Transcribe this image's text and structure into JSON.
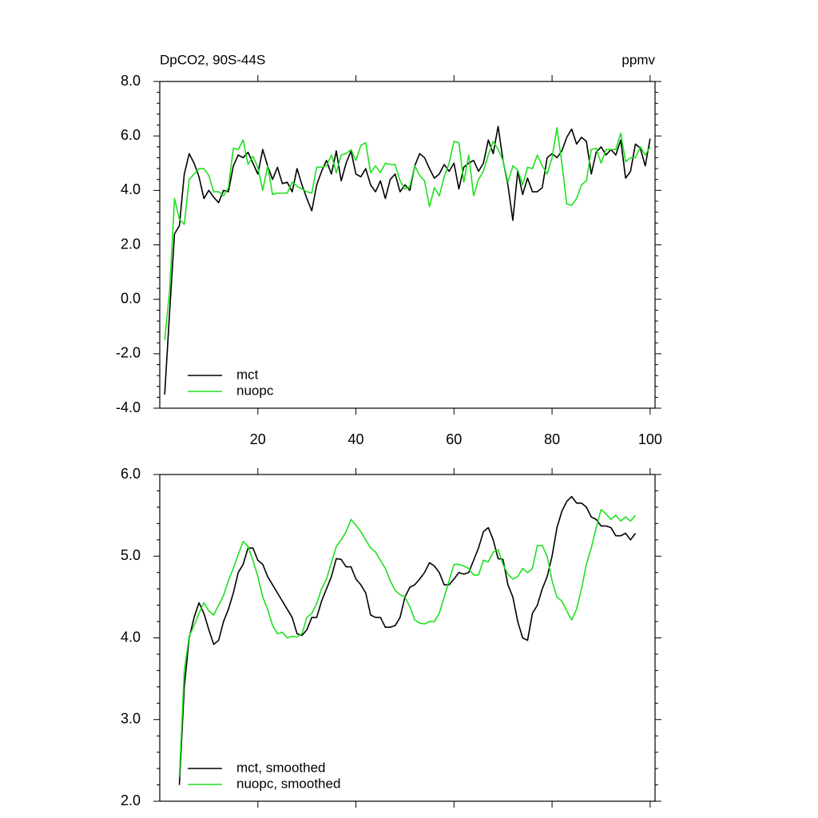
{
  "chart_data": [
    {
      "type": "line",
      "title_left": "DpCO2, 90S-44S",
      "title_right": "ppmv",
      "x": [
        1,
        2,
        3,
        4,
        5,
        6,
        7,
        8,
        9,
        10,
        11,
        12,
        13,
        14,
        15,
        16,
        17,
        18,
        19,
        20,
        21,
        22,
        23,
        24,
        25,
        26,
        27,
        28,
        29,
        30,
        31,
        32,
        33,
        34,
        35,
        36,
        37,
        38,
        39,
        40,
        41,
        42,
        43,
        44,
        45,
        46,
        47,
        48,
        49,
        50,
        51,
        52,
        53,
        54,
        55,
        56,
        57,
        58,
        59,
        60,
        61,
        62,
        63,
        64,
        65,
        66,
        67,
        68,
        69,
        70,
        71,
        72,
        73,
        74,
        75,
        76,
        77,
        78,
        79,
        80,
        81,
        82,
        83,
        84,
        85,
        86,
        87,
        88,
        89,
        90,
        91,
        92,
        93,
        94,
        95,
        96,
        97,
        98,
        99,
        100
      ],
      "series": [
        {
          "name": "mct",
          "color": "#000000",
          "values": [
            -3.5,
            -0.5,
            2.4,
            2.7,
            4.6,
            5.35,
            5.0,
            4.5,
            3.7,
            4.0,
            3.75,
            3.55,
            4.0,
            3.95,
            4.9,
            5.3,
            5.2,
            5.4,
            5.0,
            4.6,
            5.5,
            4.9,
            4.4,
            4.85,
            4.25,
            4.3,
            3.95,
            4.8,
            4.2,
            3.7,
            3.25,
            4.2,
            4.7,
            5.1,
            4.6,
            5.45,
            4.35,
            5.0,
            5.45,
            4.6,
            4.5,
            4.8,
            4.2,
            3.95,
            4.35,
            3.7,
            4.4,
            4.6,
            3.95,
            4.2,
            4.0,
            4.9,
            5.35,
            5.2,
            4.8,
            4.45,
            4.6,
            4.95,
            4.7,
            5.0,
            4.05,
            4.85,
            5.0,
            5.1,
            4.7,
            5.0,
            5.85,
            5.35,
            6.35,
            5.1,
            4.2,
            2.9,
            4.7,
            3.85,
            4.45,
            3.95,
            3.95,
            4.1,
            5.2,
            5.35,
            5.2,
            5.45,
            5.95,
            6.25,
            5.7,
            5.95,
            5.8,
            4.6,
            5.4,
            5.6,
            5.3,
            5.5,
            5.3,
            5.85,
            4.45,
            4.7,
            5.7,
            5.55,
            4.9,
            5.9
          ]
        },
        {
          "name": "nuopc",
          "color": "#1ee01e",
          "values": [
            -1.5,
            0.3,
            3.7,
            2.95,
            2.75,
            4.4,
            4.6,
            4.8,
            4.8,
            4.55,
            3.95,
            3.95,
            3.8,
            4.1,
            5.55,
            5.5,
            5.85,
            4.95,
            5.25,
            4.85,
            4.0,
            4.9,
            3.85,
            3.9,
            3.9,
            3.9,
            4.3,
            4.15,
            4.05,
            3.95,
            3.9,
            4.85,
            4.85,
            4.9,
            5.3,
            4.65,
            5.3,
            5.35,
            5.5,
            5.1,
            5.65,
            5.75,
            4.65,
            4.9,
            4.65,
            5.0,
            4.95,
            4.95,
            4.35,
            4.05,
            4.15,
            4.9,
            4.55,
            4.35,
            3.4,
            4.1,
            3.8,
            4.5,
            5.0,
            5.8,
            5.75,
            4.3,
            5.3,
            3.8,
            4.4,
            4.7,
            5.3,
            5.8,
            5.5,
            5.1,
            4.3,
            4.9,
            4.75,
            4.2,
            4.85,
            4.8,
            5.3,
            4.9,
            4.6,
            5.2,
            6.3,
            5.0,
            3.5,
            3.45,
            3.7,
            4.2,
            4.35,
            5.5,
            5.55,
            5.0,
            5.5,
            5.5,
            5.5,
            6.1,
            5.05,
            5.2,
            5.2,
            5.6,
            5.3,
            5.6
          ]
        }
      ],
      "xlim": [
        0,
        101
      ],
      "xticks": [
        20,
        40,
        60,
        80,
        100
      ],
      "x_tick_labels": true,
      "ylim": [
        -4,
        8
      ],
      "yticks": [
        {
          "value": -4,
          "label": "-4.0"
        },
        {
          "value": -2,
          "label": "-2.0"
        },
        {
          "value": 0,
          "label": "0.0"
        },
        {
          "value": 2,
          "label": "2.0"
        },
        {
          "value": 4,
          "label": "4.0"
        },
        {
          "value": 6,
          "label": "6.0"
        },
        {
          "value": 8,
          "label": "8.0"
        }
      ],
      "legend": "lower left"
    },
    {
      "type": "line",
      "x": [
        4,
        5,
        6,
        7,
        8,
        9,
        10,
        11,
        12,
        13,
        14,
        15,
        16,
        17,
        18,
        19,
        20,
        21,
        22,
        23,
        24,
        25,
        26,
        27,
        28,
        29,
        30,
        31,
        32,
        33,
        34,
        35,
        36,
        37,
        38,
        39,
        40,
        41,
        42,
        43,
        44,
        45,
        46,
        47,
        48,
        49,
        50,
        51,
        52,
        53,
        54,
        55,
        56,
        57,
        58,
        59,
        60,
        61,
        62,
        63,
        64,
        65,
        66,
        67,
        68,
        69,
        70,
        71,
        72,
        73,
        74,
        75,
        76,
        77,
        78,
        79,
        80,
        81,
        82,
        83,
        84,
        85,
        86,
        87,
        88,
        89,
        90,
        91,
        92,
        93,
        94,
        95,
        96,
        97
      ],
      "series": [
        {
          "name": "mct, smoothed",
          "color": "#000000",
          "values": [
            2.2,
            3.4,
            4.0,
            4.25,
            4.43,
            4.3,
            4.1,
            3.92,
            3.97,
            4.2,
            4.35,
            4.55,
            4.8,
            4.9,
            5.1,
            5.1,
            4.95,
            4.9,
            4.75,
            4.65,
            4.55,
            4.45,
            4.35,
            4.25,
            4.05,
            4.03,
            4.1,
            4.25,
            4.25,
            4.45,
            4.6,
            4.75,
            4.97,
            4.96,
            4.87,
            4.87,
            4.72,
            4.65,
            4.55,
            4.28,
            4.25,
            4.25,
            4.13,
            4.13,
            4.15,
            4.25,
            4.5,
            4.62,
            4.65,
            4.72,
            4.8,
            4.92,
            4.88,
            4.8,
            4.65,
            4.65,
            4.72,
            4.8,
            4.78,
            4.8,
            4.95,
            5.1,
            5.3,
            5.35,
            5.2,
            4.97,
            4.96,
            4.65,
            4.5,
            4.2,
            4.0,
            3.97,
            4.3,
            4.4,
            4.6,
            4.75,
            5.0,
            5.35,
            5.55,
            5.67,
            5.73,
            5.65,
            5.65,
            5.6,
            5.48,
            5.45,
            5.37,
            5.37,
            5.35,
            5.25,
            5.25,
            5.28,
            5.2,
            5.28
          ]
        },
        {
          "name": "nuopc, smoothed",
          "color": "#1ee01e",
          "values": [
            2.3,
            3.6,
            4.02,
            4.15,
            4.3,
            4.43,
            4.33,
            4.28,
            4.4,
            4.52,
            4.7,
            4.85,
            5.02,
            5.18,
            5.12,
            4.95,
            4.75,
            4.5,
            4.35,
            4.15,
            4.05,
            4.07,
            4.0,
            4.02,
            4.01,
            4.05,
            4.25,
            4.3,
            4.42,
            4.6,
            4.72,
            4.92,
            5.12,
            5.2,
            5.3,
            5.45,
            5.38,
            5.3,
            5.2,
            5.1,
            5.05,
            4.95,
            4.85,
            4.7,
            4.58,
            4.53,
            4.5,
            4.38,
            4.22,
            4.18,
            4.17,
            4.2,
            4.2,
            4.3,
            4.5,
            4.7,
            4.9,
            4.9,
            4.88,
            4.85,
            4.77,
            4.77,
            4.95,
            4.93,
            5.05,
            5.08,
            4.9,
            4.78,
            4.72,
            4.75,
            4.85,
            4.8,
            4.85,
            5.13,
            5.13,
            5.0,
            4.7,
            4.5,
            4.45,
            4.33,
            4.22,
            4.35,
            4.6,
            4.9,
            5.1,
            5.35,
            5.57,
            5.52,
            5.45,
            5.5,
            5.43,
            5.48,
            5.43,
            5.5
          ]
        }
      ],
      "xlim": [
        0,
        101
      ],
      "xticks": [
        20,
        40,
        60,
        80,
        100
      ],
      "x_tick_labels": false,
      "ylim": [
        2,
        6
      ],
      "yticks": [
        {
          "value": 2,
          "label": "2.0"
        },
        {
          "value": 3,
          "label": "3.0"
        },
        {
          "value": 4,
          "label": "4.0"
        },
        {
          "value": 5,
          "label": "5.0"
        },
        {
          "value": 6,
          "label": "6.0"
        }
      ],
      "legend": "lower left"
    }
  ]
}
